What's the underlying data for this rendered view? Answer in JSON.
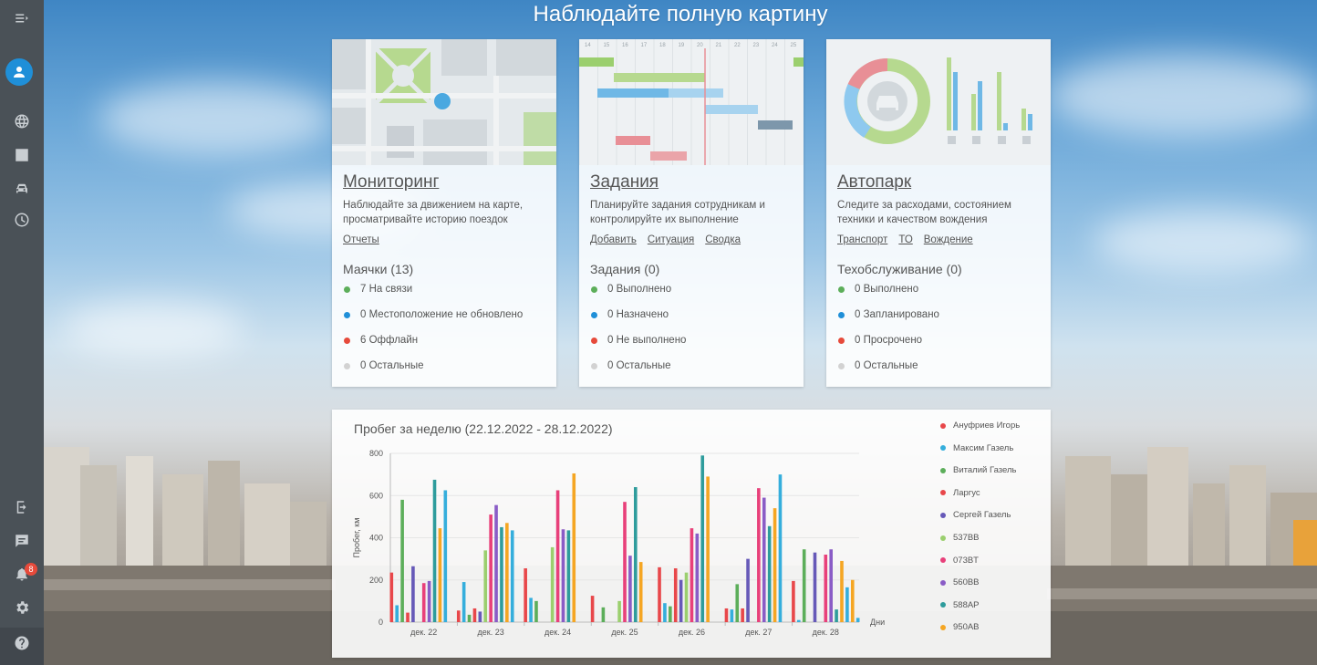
{
  "page": {
    "title": "Наблюдайте полную картину"
  },
  "sidebar": {
    "items": [
      {
        "name": "menu-toggle-icon"
      },
      {
        "name": "profile-icon"
      },
      {
        "name": "globe-icon"
      },
      {
        "name": "reports-icon"
      },
      {
        "name": "car-icon"
      },
      {
        "name": "history-icon"
      },
      {
        "name": "logout-icon"
      },
      {
        "name": "chat-icon"
      },
      {
        "name": "bell-icon"
      },
      {
        "name": "gear-icon"
      },
      {
        "name": "help-icon"
      }
    ],
    "notifications_count": "8"
  },
  "cards": [
    {
      "title": "Мониторинг",
      "description": "Наблюдайте за движением на карте, просматривайте историю поездок",
      "links": [
        "Отчеты"
      ],
      "section": "Маячки (13)",
      "stats": [
        {
          "label": "7 На связи",
          "color": "#5cae5a"
        },
        {
          "label": "0 Местоположение не обновлено",
          "color": "#1f8fd8"
        },
        {
          "label": "6 Оффлайн",
          "color": "#e64a3b"
        },
        {
          "label": "0 Остальные",
          "color": "#d2d2d2"
        }
      ]
    },
    {
      "title": "Задания",
      "description": "Планируйте задания сотрудникам и контролируйте их выполнение",
      "links": [
        "Добавить",
        "Ситуация",
        "Сводка"
      ],
      "section": "Задания (0)",
      "stats": [
        {
          "label": "0 Выполнено",
          "color": "#5cae5a"
        },
        {
          "label": "0 Назначено",
          "color": "#1f8fd8"
        },
        {
          "label": "0 Не выполнено",
          "color": "#e64a3b"
        },
        {
          "label": "0 Остальные",
          "color": "#d2d2d2"
        }
      ],
      "timeline_labels": [
        "14",
        "15",
        "16",
        "17",
        "18",
        "19",
        "20",
        "21",
        "22",
        "23",
        "24",
        "25"
      ]
    },
    {
      "title": "Автопарк",
      "description": "Следите за расходами, состоянием техники и качеством вождения",
      "links": [
        "Транспорт",
        "ТО",
        "Вождение"
      ],
      "section": "Техобслуживание (0)",
      "stats": [
        {
          "label": "0 Выполнено",
          "color": "#5cae5a"
        },
        {
          "label": "0 Запланировано",
          "color": "#1f8fd8"
        },
        {
          "label": "0 Просрочено",
          "color": "#e64a3b"
        },
        {
          "label": "0 Остальные",
          "color": "#d2d2d2"
        }
      ]
    }
  ],
  "chart_data": {
    "type": "bar",
    "title": "Пробег за неделю (22.12.2022 - 28.12.2022)",
    "ylabel": "Пробег, км",
    "xlabel": "Дни",
    "ylim": [
      0,
      800
    ],
    "yticks": [
      0,
      200,
      400,
      600,
      800
    ],
    "grid": true,
    "legend_position": "right",
    "categories": [
      "дек. 22",
      "дек. 23",
      "дек. 24",
      "дек. 25",
      "дек. 26",
      "дек. 27",
      "дек. 28"
    ],
    "series": [
      {
        "name": "Ануфриев Игорь",
        "color": "#e8474a",
        "values": [
          235,
          55,
          255,
          125,
          260,
          65,
          195
        ]
      },
      {
        "name": "Максим Газель",
        "color": "#35aedc",
        "values": [
          80,
          190,
          115,
          0,
          90,
          60,
          10
        ]
      },
      {
        "name": "Виталий Газель",
        "color": "#5cae5a",
        "values": [
          580,
          35,
          100,
          70,
          75,
          180,
          345
        ]
      },
      {
        "name": "Ларгус",
        "color": "#e8474a",
        "values": [
          45,
          65,
          0,
          0,
          255,
          65,
          0
        ]
      },
      {
        "name": "Сергей Газель",
        "color": "#6659b8",
        "values": [
          265,
          50,
          0,
          0,
          200,
          300,
          330
        ]
      },
      {
        "name": "537BB",
        "color": "#9bcf6e",
        "values": [
          0,
          340,
          355,
          100,
          235,
          0,
          0
        ]
      },
      {
        "name": "073BT",
        "color": "#e8407a",
        "values": [
          185,
          510,
          625,
          570,
          445,
          635,
          320
        ]
      },
      {
        "name": "560BB",
        "color": "#8a5cc6",
        "values": [
          195,
          555,
          440,
          315,
          420,
          590,
          345
        ]
      },
      {
        "name": "588AP",
        "color": "#2e9c9c",
        "values": [
          675,
          450,
          435,
          640,
          790,
          455,
          60
        ]
      },
      {
        "name": "950AB",
        "color": "#f5a623",
        "values": [
          445,
          470,
          705,
          285,
          690,
          540,
          290
        ]
      },
      {
        "name": "",
        "color": "#35aedc",
        "values": [
          625,
          435,
          0,
          0,
          0,
          700,
          165
        ]
      },
      {
        "name": "",
        "color": "#f5a623",
        "values": [
          0,
          0,
          0,
          0,
          0,
          0,
          200
        ]
      },
      {
        "name": "",
        "color": "#35aedc",
        "values": [
          0,
          0,
          0,
          0,
          0,
          0,
          20
        ]
      }
    ]
  }
}
